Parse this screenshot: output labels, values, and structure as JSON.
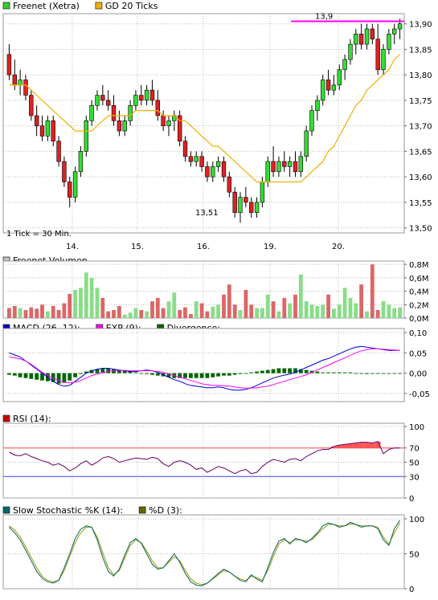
{
  "panels": {
    "price": {
      "legend": [
        {
          "label": "Freenet (Xetra)",
          "color": "#33cc33"
        },
        {
          "label": "GD 20 Ticks",
          "color": "#f0b000"
        }
      ],
      "note": "1 Tick = 30 Min.",
      "high_label": "13,9",
      "low_label": "13,51",
      "y_ticks": [
        "13,90",
        "13,85",
        "13,80",
        "13,75",
        "13,70",
        "13,65",
        "13,60",
        "13,55",
        "13,50"
      ],
      "x_ticks": [
        "14.",
        "15.",
        "16.",
        "19.",
        "20."
      ]
    },
    "volume": {
      "legend": [
        {
          "label": "Freenet Volumen",
          "color": "#c0c0c0"
        }
      ],
      "y_ticks": [
        "0,8M",
        "0,6M",
        "0,4M",
        "0,2M",
        "0,0M"
      ]
    },
    "macd": {
      "legend": [
        {
          "label": "MACD (26, 12):",
          "color": "#0000cc"
        },
        {
          "label": "EXP (9):",
          "color": "#ff00ff"
        },
        {
          "label": "Divergence:",
          "color": "#006600"
        }
      ],
      "y_ticks": [
        "0,10",
        "0,05",
        "0,00",
        "-0,05"
      ]
    },
    "rsi": {
      "legend": [
        {
          "label": "RSI (14):",
          "color": "#cc0000"
        }
      ],
      "y_ticks": [
        "100",
        "70",
        "50",
        "30",
        "0"
      ]
    },
    "stoch": {
      "legend": [
        {
          "label": "Slow Stochastic %K (14):",
          "color": "#006666"
        },
        {
          "label": "%D (3):",
          "color": "#666600"
        }
      ],
      "y_ticks": [
        "100",
        "50",
        "0"
      ]
    }
  },
  "colors": {
    "up": "#33dd33",
    "down": "#dd2222",
    "ma": "#f0b000",
    "hline": "#ff00ff",
    "grid": "#bbbbbb",
    "rsi_line": "#660066",
    "rsi_upper": "#ff4444",
    "rsi_lower": "#4444ff",
    "macd": "#0000cc",
    "exp": "#ff00ff",
    "div": "#006600",
    "stoch_k": "#006666",
    "stoch_d": "#999900",
    "vol_up": "#88dd88",
    "vol_down": "#dd6666"
  },
  "chart_data": {
    "type": "candlestick",
    "x_labels": [
      "14.",
      "15.",
      "16.",
      "19.",
      "20."
    ],
    "ylim": [
      13.49,
      13.92
    ],
    "highlight_level": 13.905,
    "candles": [
      [
        13.84,
        13.86,
        13.79,
        13.8
      ],
      [
        13.8,
        13.83,
        13.77,
        13.78
      ],
      [
        13.78,
        13.81,
        13.76,
        13.79
      ],
      [
        13.79,
        13.8,
        13.75,
        13.76
      ],
      [
        13.76,
        13.77,
        13.71,
        13.72
      ],
      [
        13.72,
        13.74,
        13.68,
        13.7
      ],
      [
        13.7,
        13.72,
        13.67,
        13.68
      ],
      [
        13.68,
        13.72,
        13.67,
        13.71
      ],
      [
        13.71,
        13.72,
        13.66,
        13.67
      ],
      [
        13.67,
        13.68,
        13.62,
        13.63
      ],
      [
        13.63,
        13.64,
        13.58,
        13.59
      ],
      [
        13.59,
        13.6,
        13.54,
        13.56
      ],
      [
        13.56,
        13.62,
        13.55,
        13.61
      ],
      [
        13.61,
        13.66,
        13.6,
        13.65
      ],
      [
        13.65,
        13.72,
        13.64,
        13.71
      ],
      [
        13.71,
        13.75,
        13.7,
        13.74
      ],
      [
        13.74,
        13.77,
        13.73,
        13.76
      ],
      [
        13.76,
        13.78,
        13.74,
        13.75
      ],
      [
        13.75,
        13.77,
        13.73,
        13.74
      ],
      [
        13.74,
        13.76,
        13.7,
        13.71
      ],
      [
        13.71,
        13.73,
        13.68,
        13.69
      ],
      [
        13.69,
        13.72,
        13.68,
        13.71
      ],
      [
        13.71,
        13.75,
        13.7,
        13.74
      ],
      [
        13.74,
        13.77,
        13.73,
        13.76
      ],
      [
        13.76,
        13.78,
        13.74,
        13.75
      ],
      [
        13.75,
        13.78,
        13.74,
        13.77
      ],
      [
        13.77,
        13.79,
        13.74,
        13.75
      ],
      [
        13.75,
        13.77,
        13.71,
        13.72
      ],
      [
        13.72,
        13.73,
        13.69,
        13.7
      ],
      [
        13.7,
        13.72,
        13.68,
        13.71
      ],
      [
        13.71,
        13.73,
        13.69,
        13.72
      ],
      [
        13.72,
        13.73,
        13.66,
        13.67
      ],
      [
        13.67,
        13.68,
        13.63,
        13.64
      ],
      [
        13.64,
        13.65,
        13.62,
        13.63
      ],
      [
        13.63,
        13.65,
        13.62,
        13.64
      ],
      [
        13.64,
        13.65,
        13.61,
        13.62
      ],
      [
        13.62,
        13.63,
        13.59,
        13.6
      ],
      [
        13.6,
        13.63,
        13.59,
        13.62
      ],
      [
        13.62,
        13.64,
        13.61,
        13.63
      ],
      [
        13.63,
        13.64,
        13.59,
        13.6
      ],
      [
        13.6,
        13.61,
        13.56,
        13.57
      ],
      [
        13.57,
        13.58,
        13.52,
        13.53
      ],
      [
        13.53,
        13.57,
        13.51,
        13.56
      ],
      [
        13.56,
        13.58,
        13.54,
        13.55
      ],
      [
        13.55,
        13.56,
        13.52,
        13.53
      ],
      [
        13.53,
        13.56,
        13.52,
        13.55
      ],
      [
        13.55,
        13.6,
        13.54,
        13.59
      ],
      [
        13.59,
        13.64,
        13.58,
        13.63
      ],
      [
        13.63,
        13.66,
        13.6,
        13.61
      ],
      [
        13.61,
        13.64,
        13.6,
        13.63
      ],
      [
        13.63,
        13.65,
        13.61,
        13.62
      ],
      [
        13.62,
        13.64,
        13.6,
        13.63
      ],
      [
        13.63,
        13.65,
        13.6,
        13.61
      ],
      [
        13.61,
        13.65,
        13.6,
        13.64
      ],
      [
        13.64,
        13.7,
        13.63,
        13.69
      ],
      [
        13.69,
        13.74,
        13.68,
        13.73
      ],
      [
        13.73,
        13.76,
        13.71,
        13.75
      ],
      [
        13.75,
        13.8,
        13.74,
        13.79
      ],
      [
        13.79,
        13.81,
        13.76,
        13.77
      ],
      [
        13.77,
        13.8,
        13.76,
        13.78
      ],
      [
        13.78,
        13.82,
        13.77,
        13.81
      ],
      [
        13.81,
        13.84,
        13.79,
        13.83
      ],
      [
        13.83,
        13.87,
        13.82,
        13.86
      ],
      [
        13.86,
        13.89,
        13.84,
        13.88
      ],
      [
        13.88,
        13.9,
        13.85,
        13.86
      ],
      [
        13.86,
        13.9,
        13.85,
        13.89
      ],
      [
        13.89,
        13.9,
        13.86,
        13.87
      ],
      [
        13.87,
        13.9,
        13.8,
        13.81
      ],
      [
        13.81,
        13.86,
        13.8,
        13.85
      ],
      [
        13.85,
        13.89,
        13.84,
        13.88
      ],
      [
        13.88,
        13.9,
        13.86,
        13.89
      ],
      [
        13.89,
        13.91,
        13.87,
        13.9
      ]
    ],
    "moving_average_20": [
      13.78,
      13.78,
      13.78,
      13.78,
      13.77,
      13.76,
      13.75,
      13.74,
      13.73,
      13.72,
      13.71,
      13.7,
      13.69,
      13.69,
      13.69,
      13.69,
      13.7,
      13.71,
      13.72,
      13.72,
      13.72,
      13.72,
      13.72,
      13.73,
      13.73,
      13.73,
      13.73,
      13.73,
      13.72,
      13.72,
      13.72,
      13.71,
      13.71,
      13.7,
      13.69,
      13.68,
      13.67,
      13.66,
      13.66,
      13.65,
      13.64,
      13.63,
      13.62,
      13.61,
      13.6,
      13.59,
      13.59,
      13.59,
      13.59,
      13.59,
      13.59,
      13.59,
      13.59,
      13.59,
      13.6,
      13.61,
      13.62,
      13.63,
      13.65,
      13.66,
      13.68,
      13.7,
      13.72,
      13.74,
      13.75,
      13.77,
      13.78,
      13.79,
      13.8,
      13.81,
      13.83,
      13.84
    ],
    "volume_ylim": [
      0,
      0.85
    ],
    "volume": [
      0.15,
      0.18,
      0.15,
      0.12,
      0.16,
      0.14,
      0.2,
      0.1,
      0.18,
      0.12,
      0.22,
      0.36,
      0.42,
      0.45,
      0.68,
      0.6,
      0.45,
      0.3,
      0.1,
      0.12,
      0.18,
      0.05,
      0.08,
      0.15,
      0.12,
      0.1,
      0.25,
      0.3,
      0.15,
      0.25,
      0.38,
      0.12,
      0.16,
      0.06,
      0.25,
      0.22,
      0.1,
      0.17,
      0.2,
      0.35,
      0.5,
      0.2,
      0.12,
      0.42,
      0.2,
      0.15,
      0.15,
      0.35,
      0.25,
      0.1,
      0.3,
      0.22,
      0.35,
      0.65,
      0.25,
      0.2,
      0.18,
      0.2,
      0.35,
      0.14,
      0.2,
      0.45,
      0.3,
      0.22,
      0.5,
      0.1,
      0.8,
      0.12,
      0.25,
      0.2,
      0.15,
      0.16
    ],
    "macd_ylim": [
      -0.07,
      0.11
    ],
    "macd": [
      0.05,
      0.045,
      0.04,
      0.03,
      0.02,
      0.01,
      0.0,
      -0.01,
      -0.02,
      -0.028,
      -0.032,
      -0.03,
      -0.02,
      -0.01,
      0.0,
      0.006,
      0.01,
      0.012,
      0.012,
      0.01,
      0.008,
      0.006,
      0.004,
      0.004,
      0.006,
      0.008,
      0.006,
      0.002,
      -0.004,
      -0.01,
      -0.016,
      -0.02,
      -0.026,
      -0.03,
      -0.032,
      -0.034,
      -0.036,
      -0.036,
      -0.034,
      -0.036,
      -0.04,
      -0.042,
      -0.042,
      -0.04,
      -0.036,
      -0.03,
      -0.024,
      -0.018,
      -0.012,
      -0.008,
      -0.005,
      -0.002,
      0.002,
      0.008,
      0.014,
      0.02,
      0.026,
      0.032,
      0.036,
      0.042,
      0.048,
      0.054,
      0.06,
      0.064,
      0.066,
      0.064,
      0.062,
      0.06,
      0.058,
      0.056,
      0.056,
      0.056
    ],
    "macd_exp": [
      0.04,
      0.038,
      0.035,
      0.03,
      0.022,
      0.012,
      0.002,
      -0.006,
      -0.012,
      -0.018,
      -0.022,
      -0.024,
      -0.022,
      -0.018,
      -0.012,
      -0.006,
      -0.002,
      0.002,
      0.004,
      0.006,
      0.007,
      0.007,
      0.006,
      0.006,
      0.006,
      0.006,
      0.006,
      0.004,
      0.002,
      -0.002,
      -0.006,
      -0.01,
      -0.014,
      -0.018,
      -0.022,
      -0.026,
      -0.028,
      -0.03,
      -0.03,
      -0.031,
      -0.032,
      -0.034,
      -0.036,
      -0.037,
      -0.037,
      -0.036,
      -0.034,
      -0.032,
      -0.028,
      -0.024,
      -0.02,
      -0.016,
      -0.012,
      -0.008,
      -0.004,
      0.002,
      0.008,
      0.014,
      0.02,
      0.026,
      0.032,
      0.038,
      0.044,
      0.05,
      0.055,
      0.058,
      0.06,
      0.06,
      0.059,
      0.058,
      0.057,
      0.056
    ],
    "divergence": [
      -0.004,
      -0.006,
      -0.01,
      -0.012,
      -0.014,
      -0.016,
      -0.018,
      -0.02,
      -0.022,
      -0.026,
      -0.024,
      -0.018,
      -0.01,
      -0.002,
      0.004,
      0.008,
      0.01,
      0.012,
      0.012,
      0.01,
      0.008,
      0.006,
      0.004,
      0.002,
      0.0,
      -0.002,
      -0.004,
      -0.006,
      -0.008,
      -0.01,
      -0.012,
      -0.012,
      -0.012,
      -0.012,
      -0.012,
      -0.012,
      -0.012,
      -0.01,
      -0.008,
      -0.006,
      -0.006,
      -0.004,
      -0.002,
      0.0,
      0.002,
      0.004,
      0.006,
      0.008,
      0.01,
      0.012,
      0.012,
      0.012,
      0.012,
      0.01,
      0.008,
      0.006,
      0.004,
      0.002,
      0.002,
      0.002,
      0.002,
      0.002,
      0.002,
      0.0,
      0.0,
      -0.002,
      0.0,
      0.0,
      0.0,
      0.0,
      0.0,
      0.0
    ],
    "rsi_ylim": [
      0,
      100
    ],
    "rsi_levels": [
      70,
      30
    ],
    "rsi": [
      64,
      60,
      59,
      62,
      58,
      55,
      52,
      50,
      46,
      48,
      44,
      38,
      42,
      48,
      52,
      46,
      50,
      56,
      58,
      55,
      50,
      52,
      54,
      56,
      55,
      54,
      57,
      55,
      48,
      44,
      50,
      52,
      50,
      46,
      40,
      42,
      36,
      40,
      44,
      42,
      38,
      34,
      38,
      40,
      34,
      36,
      44,
      50,
      54,
      52,
      50,
      54,
      55,
      52,
      58,
      62,
      66,
      68,
      68,
      72,
      74,
      75,
      76,
      77,
      78,
      78,
      77,
      79,
      62,
      68,
      70,
      70
    ],
    "stoch_ylim": [
      0,
      100
    ],
    "stoch_k": [
      88,
      80,
      70,
      55,
      40,
      25,
      15,
      10,
      8,
      12,
      30,
      50,
      72,
      85,
      90,
      88,
      70,
      45,
      25,
      18,
      28,
      48,
      66,
      72,
      65,
      50,
      35,
      28,
      30,
      40,
      50,
      38,
      22,
      10,
      5,
      4,
      8,
      15,
      22,
      28,
      24,
      18,
      12,
      10,
      20,
      14,
      10,
      30,
      52,
      68,
      72,
      64,
      72,
      70,
      66,
      72,
      80,
      90,
      94,
      92,
      88,
      90,
      95,
      92,
      88,
      90,
      90,
      86,
      70,
      62,
      86,
      98
    ],
    "stoch_d": [
      90,
      84,
      74,
      60,
      45,
      30,
      18,
      12,
      10,
      12,
      26,
      46,
      66,
      80,
      88,
      88,
      74,
      52,
      30,
      20,
      26,
      44,
      62,
      70,
      66,
      54,
      40,
      30,
      30,
      38,
      46,
      40,
      26,
      14,
      8,
      6,
      8,
      14,
      20,
      26,
      24,
      18,
      14,
      12,
      18,
      16,
      12,
      26,
      46,
      64,
      70,
      66,
      70,
      70,
      68,
      70,
      78,
      86,
      92,
      92,
      90,
      90,
      93,
      92,
      90,
      90,
      90,
      88,
      74,
      64,
      80,
      94
    ]
  }
}
